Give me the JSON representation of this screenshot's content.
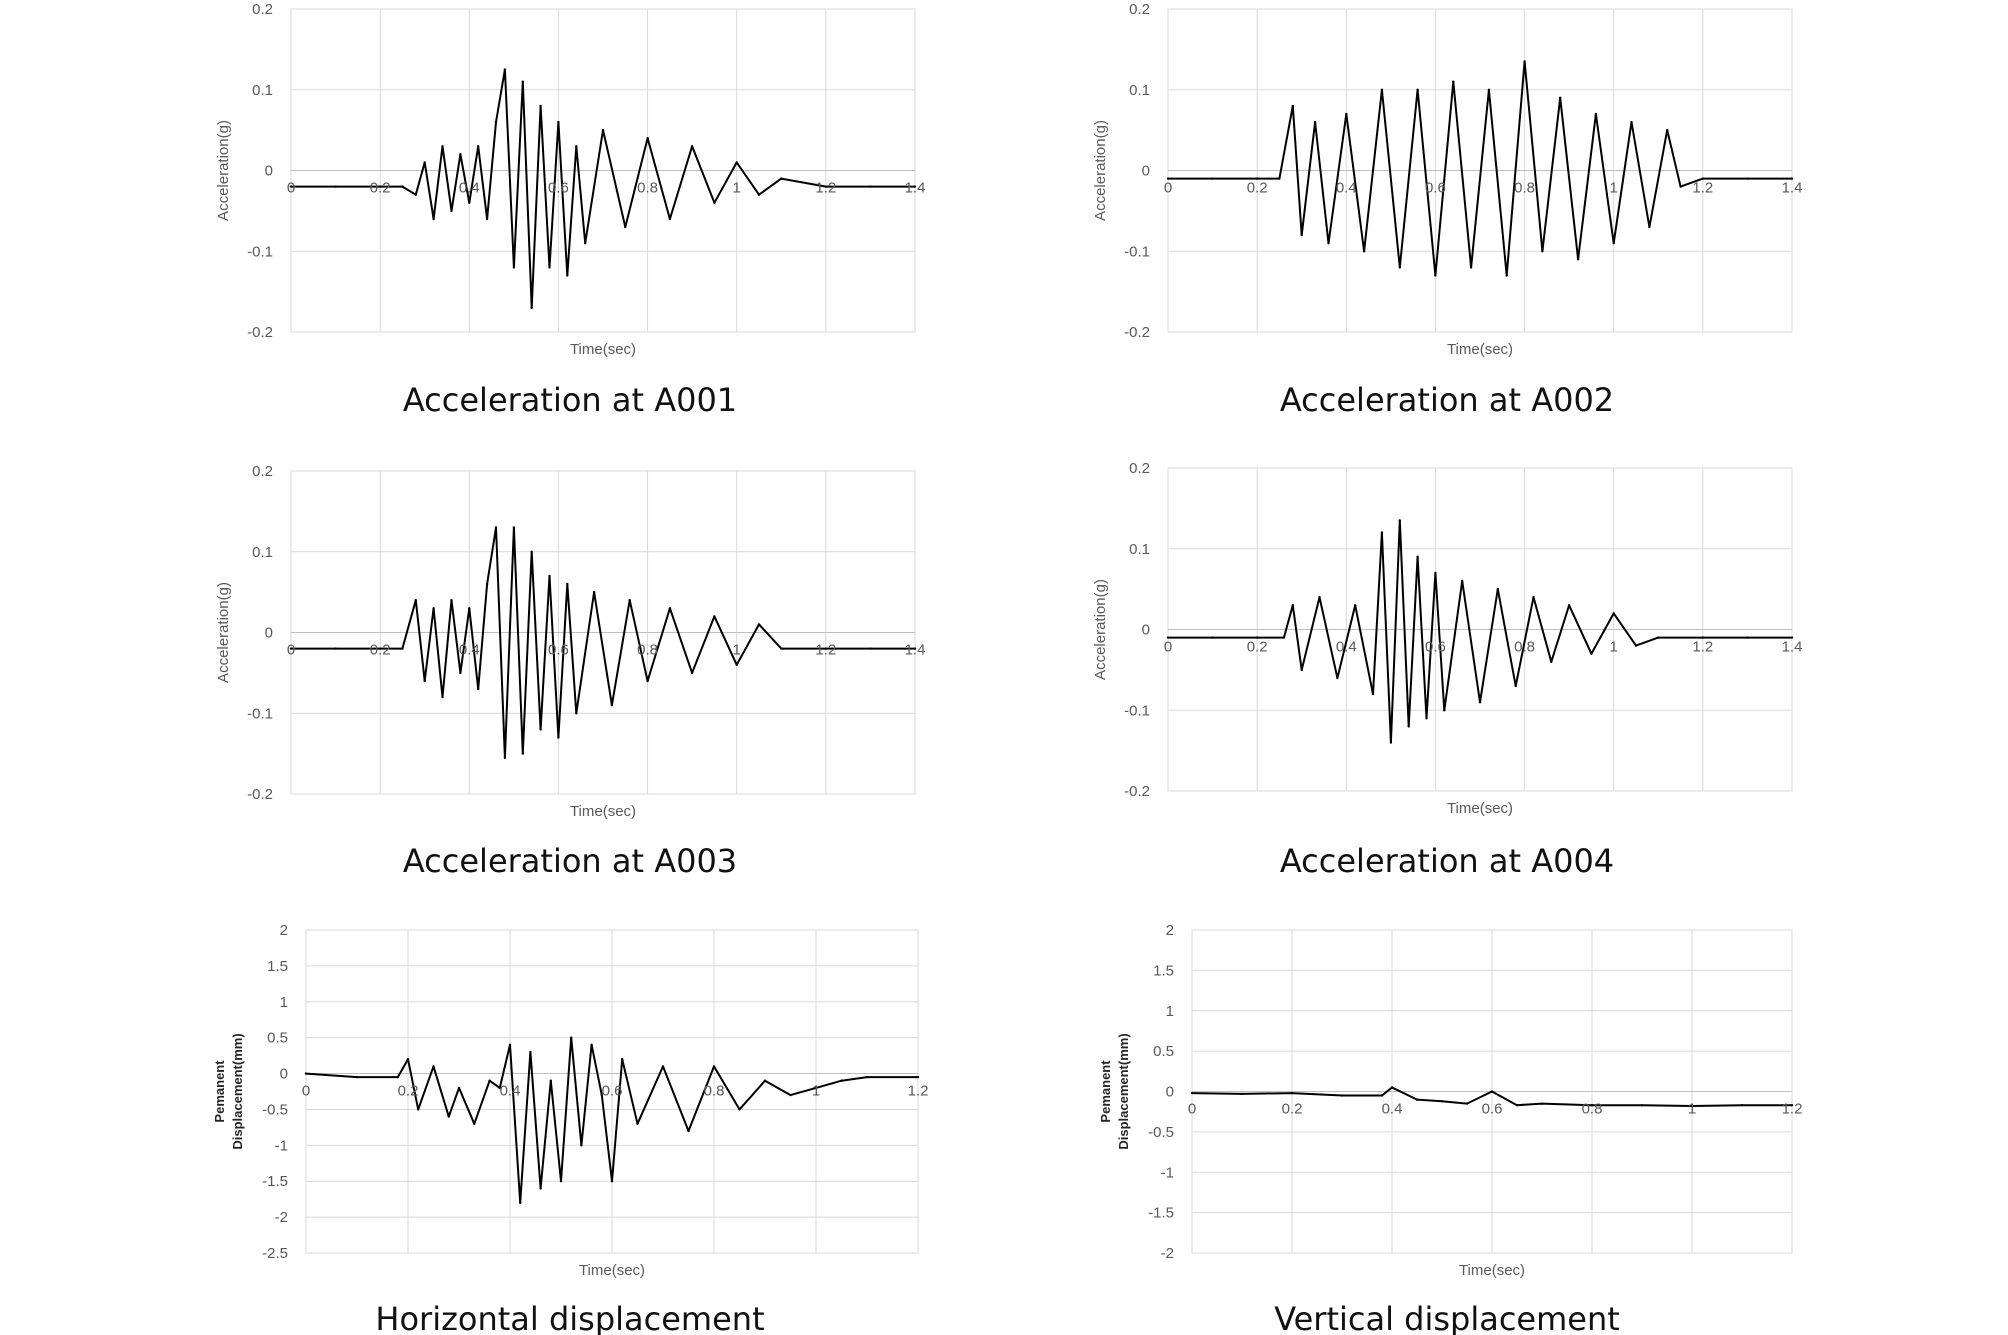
{
  "chart_data": [
    {
      "type": "line",
      "caption": "Acceleration at A001",
      "xlabel": "Time(sec)",
      "ylabel": "Acceleration(g)",
      "xlim": [
        0,
        1.4
      ],
      "ylim": [
        -0.2,
        0.2
      ],
      "x_ticks": [
        0,
        0.2,
        0.4,
        0.6,
        0.8,
        1,
        1.2,
        1.4
      ],
      "y_ticks": [
        -0.2,
        -0.1,
        0,
        0.1,
        0.2
      ],
      "grid": true,
      "series": [
        {
          "x": [
            0,
            0.1,
            0.2,
            0.25,
            0.28,
            0.3,
            0.32,
            0.34,
            0.36,
            0.38,
            0.4,
            0.42,
            0.44,
            0.46,
            0.48,
            0.5,
            0.52,
            0.54,
            0.56,
            0.58,
            0.6,
            0.62,
            0.64,
            0.66,
            0.7,
            0.75,
            0.8,
            0.85,
            0.9,
            0.95,
            1.0,
            1.05,
            1.1,
            1.2,
            1.3,
            1.4
          ],
          "y": [
            -0.02,
            -0.02,
            -0.02,
            -0.02,
            -0.03,
            0.01,
            -0.06,
            0.03,
            -0.05,
            0.02,
            -0.04,
            0.03,
            -0.06,
            0.06,
            0.125,
            -0.12,
            0.11,
            -0.17,
            0.08,
            -0.12,
            0.06,
            -0.13,
            0.03,
            -0.09,
            0.05,
            -0.07,
            0.04,
            -0.06,
            0.03,
            -0.04,
            0.01,
            -0.03,
            -0.01,
            -0.02,
            -0.02,
            -0.02
          ]
        }
      ]
    },
    {
      "type": "line",
      "caption": "Acceleration at A002",
      "xlabel": "Time(sec)",
      "ylabel": "Acceleration(g)",
      "xlim": [
        0,
        1.4
      ],
      "ylim": [
        -0.2,
        0.2
      ],
      "x_ticks": [
        0,
        0.2,
        0.4,
        0.6,
        0.8,
        1,
        1.2,
        1.4
      ],
      "y_ticks": [
        -0.2,
        -0.1,
        0,
        0.1,
        0.2
      ],
      "grid": true,
      "series": [
        {
          "x": [
            0,
            0.1,
            0.2,
            0.25,
            0.28,
            0.3,
            0.33,
            0.36,
            0.4,
            0.44,
            0.48,
            0.52,
            0.56,
            0.6,
            0.64,
            0.68,
            0.72,
            0.76,
            0.8,
            0.84,
            0.88,
            0.92,
            0.96,
            1.0,
            1.04,
            1.08,
            1.12,
            1.15,
            1.2,
            1.3,
            1.4
          ],
          "y": [
            -0.01,
            -0.01,
            -0.01,
            -0.01,
            0.08,
            -0.08,
            0.06,
            -0.09,
            0.07,
            -0.1,
            0.1,
            -0.12,
            0.1,
            -0.13,
            0.11,
            -0.12,
            0.1,
            -0.13,
            0.135,
            -0.1,
            0.09,
            -0.11,
            0.07,
            -0.09,
            0.06,
            -0.07,
            0.05,
            -0.02,
            -0.01,
            -0.01,
            -0.01
          ]
        }
      ]
    },
    {
      "type": "line",
      "caption": "Acceleration at A003",
      "xlabel": "Time(sec)",
      "ylabel": "Acceleration(g)",
      "xlim": [
        0,
        1.4
      ],
      "ylim": [
        -0.2,
        0.2
      ],
      "x_ticks": [
        0,
        0.2,
        0.4,
        0.6,
        0.8,
        1,
        1.2,
        1.4
      ],
      "y_ticks": [
        -0.2,
        -0.1,
        0,
        0.1,
        0.2
      ],
      "grid": true,
      "series": [
        {
          "x": [
            0,
            0.1,
            0.2,
            0.25,
            0.28,
            0.3,
            0.32,
            0.34,
            0.36,
            0.38,
            0.4,
            0.42,
            0.44,
            0.46,
            0.48,
            0.5,
            0.52,
            0.54,
            0.56,
            0.58,
            0.6,
            0.62,
            0.64,
            0.68,
            0.72,
            0.76,
            0.8,
            0.85,
            0.9,
            0.95,
            1.0,
            1.05,
            1.1,
            1.2,
            1.3,
            1.4
          ],
          "y": [
            -0.02,
            -0.02,
            -0.02,
            -0.02,
            0.04,
            -0.06,
            0.03,
            -0.08,
            0.04,
            -0.05,
            0.03,
            -0.07,
            0.06,
            0.13,
            -0.155,
            0.13,
            -0.15,
            0.1,
            -0.12,
            0.07,
            -0.13,
            0.06,
            -0.1,
            0.05,
            -0.09,
            0.04,
            -0.06,
            0.03,
            -0.05,
            0.02,
            -0.04,
            0.01,
            -0.02,
            -0.02,
            -0.02,
            -0.02
          ]
        }
      ]
    },
    {
      "type": "line",
      "caption": "Acceleration at A004",
      "xlabel": "Time(sec)",
      "ylabel": "Acceleration(g)",
      "xlim": [
        0,
        1.4
      ],
      "ylim": [
        -0.2,
        0.2
      ],
      "x_ticks": [
        0,
        0.2,
        0.4,
        0.6,
        0.8,
        1,
        1.2,
        1.4
      ],
      "y_ticks": [
        -0.2,
        -0.1,
        0,
        0.1,
        0.2
      ],
      "grid": true,
      "series": [
        {
          "x": [
            0,
            0.1,
            0.2,
            0.26,
            0.28,
            0.3,
            0.34,
            0.38,
            0.42,
            0.46,
            0.48,
            0.5,
            0.52,
            0.54,
            0.56,
            0.58,
            0.6,
            0.62,
            0.66,
            0.7,
            0.74,
            0.78,
            0.82,
            0.86,
            0.9,
            0.95,
            1.0,
            1.05,
            1.1,
            1.2,
            1.3,
            1.4
          ],
          "y": [
            -0.01,
            -0.01,
            -0.01,
            -0.01,
            0.03,
            -0.05,
            0.04,
            -0.06,
            0.03,
            -0.08,
            0.12,
            -0.14,
            0.135,
            -0.12,
            0.09,
            -0.11,
            0.07,
            -0.1,
            0.06,
            -0.09,
            0.05,
            -0.07,
            0.04,
            -0.04,
            0.03,
            -0.03,
            0.02,
            -0.02,
            -0.01,
            -0.01,
            -0.01,
            -0.01
          ]
        }
      ]
    },
    {
      "type": "line",
      "caption": "Horizontal displacement",
      "xlabel": "Time(sec)",
      "ylabel_lines": [
        "Pemanent",
        "Displacement(mm)"
      ],
      "xlim": [
        0,
        1.2
      ],
      "ylim": [
        -2.5,
        2
      ],
      "x_ticks": [
        0,
        0.2,
        0.4,
        0.6,
        0.8,
        1,
        1.2
      ],
      "y_ticks": [
        -2.5,
        -2,
        -1.5,
        -1,
        -0.5,
        0,
        0.5,
        1,
        1.5,
        2
      ],
      "grid": true,
      "series": [
        {
          "x": [
            0,
            0.1,
            0.18,
            0.2,
            0.22,
            0.25,
            0.28,
            0.3,
            0.33,
            0.36,
            0.38,
            0.4,
            0.42,
            0.44,
            0.46,
            0.48,
            0.5,
            0.52,
            0.54,
            0.56,
            0.58,
            0.6,
            0.62,
            0.65,
            0.7,
            0.75,
            0.8,
            0.85,
            0.9,
            0.95,
            1.0,
            1.05,
            1.1,
            1.2
          ],
          "y": [
            0,
            -0.05,
            -0.05,
            0.2,
            -0.5,
            0.1,
            -0.6,
            -0.2,
            -0.7,
            -0.1,
            -0.2,
            0.4,
            -1.8,
            0.3,
            -1.6,
            -0.1,
            -1.5,
            0.5,
            -1.0,
            0.4,
            -0.3,
            -1.5,
            0.2,
            -0.7,
            0.1,
            -0.8,
            0.1,
            -0.5,
            -0.1,
            -0.3,
            -0.2,
            -0.1,
            -0.05,
            -0.05
          ]
        }
      ]
    },
    {
      "type": "line",
      "caption": "Vertical displacement",
      "xlabel": "Time(sec)",
      "ylabel_lines": [
        "Pemanent",
        "Displacement(mm)"
      ],
      "xlim": [
        0,
        1.2
      ],
      "ylim": [
        -2,
        2
      ],
      "x_ticks": [
        0,
        0.2,
        0.4,
        0.6,
        0.8,
        1,
        1.2
      ],
      "y_ticks": [
        -2,
        -1.5,
        -1,
        -0.5,
        0,
        0.5,
        1,
        1.5,
        2
      ],
      "grid": true,
      "series": [
        {
          "x": [
            0,
            0.1,
            0.2,
            0.3,
            0.38,
            0.4,
            0.45,
            0.5,
            0.55,
            0.6,
            0.65,
            0.7,
            0.8,
            0.9,
            1.0,
            1.1,
            1.2
          ],
          "y": [
            -0.02,
            -0.03,
            -0.02,
            -0.05,
            -0.05,
            0.05,
            -0.1,
            -0.12,
            -0.15,
            0.0,
            -0.17,
            -0.15,
            -0.17,
            -0.17,
            -0.18,
            -0.17,
            -0.17
          ]
        }
      ]
    }
  ]
}
